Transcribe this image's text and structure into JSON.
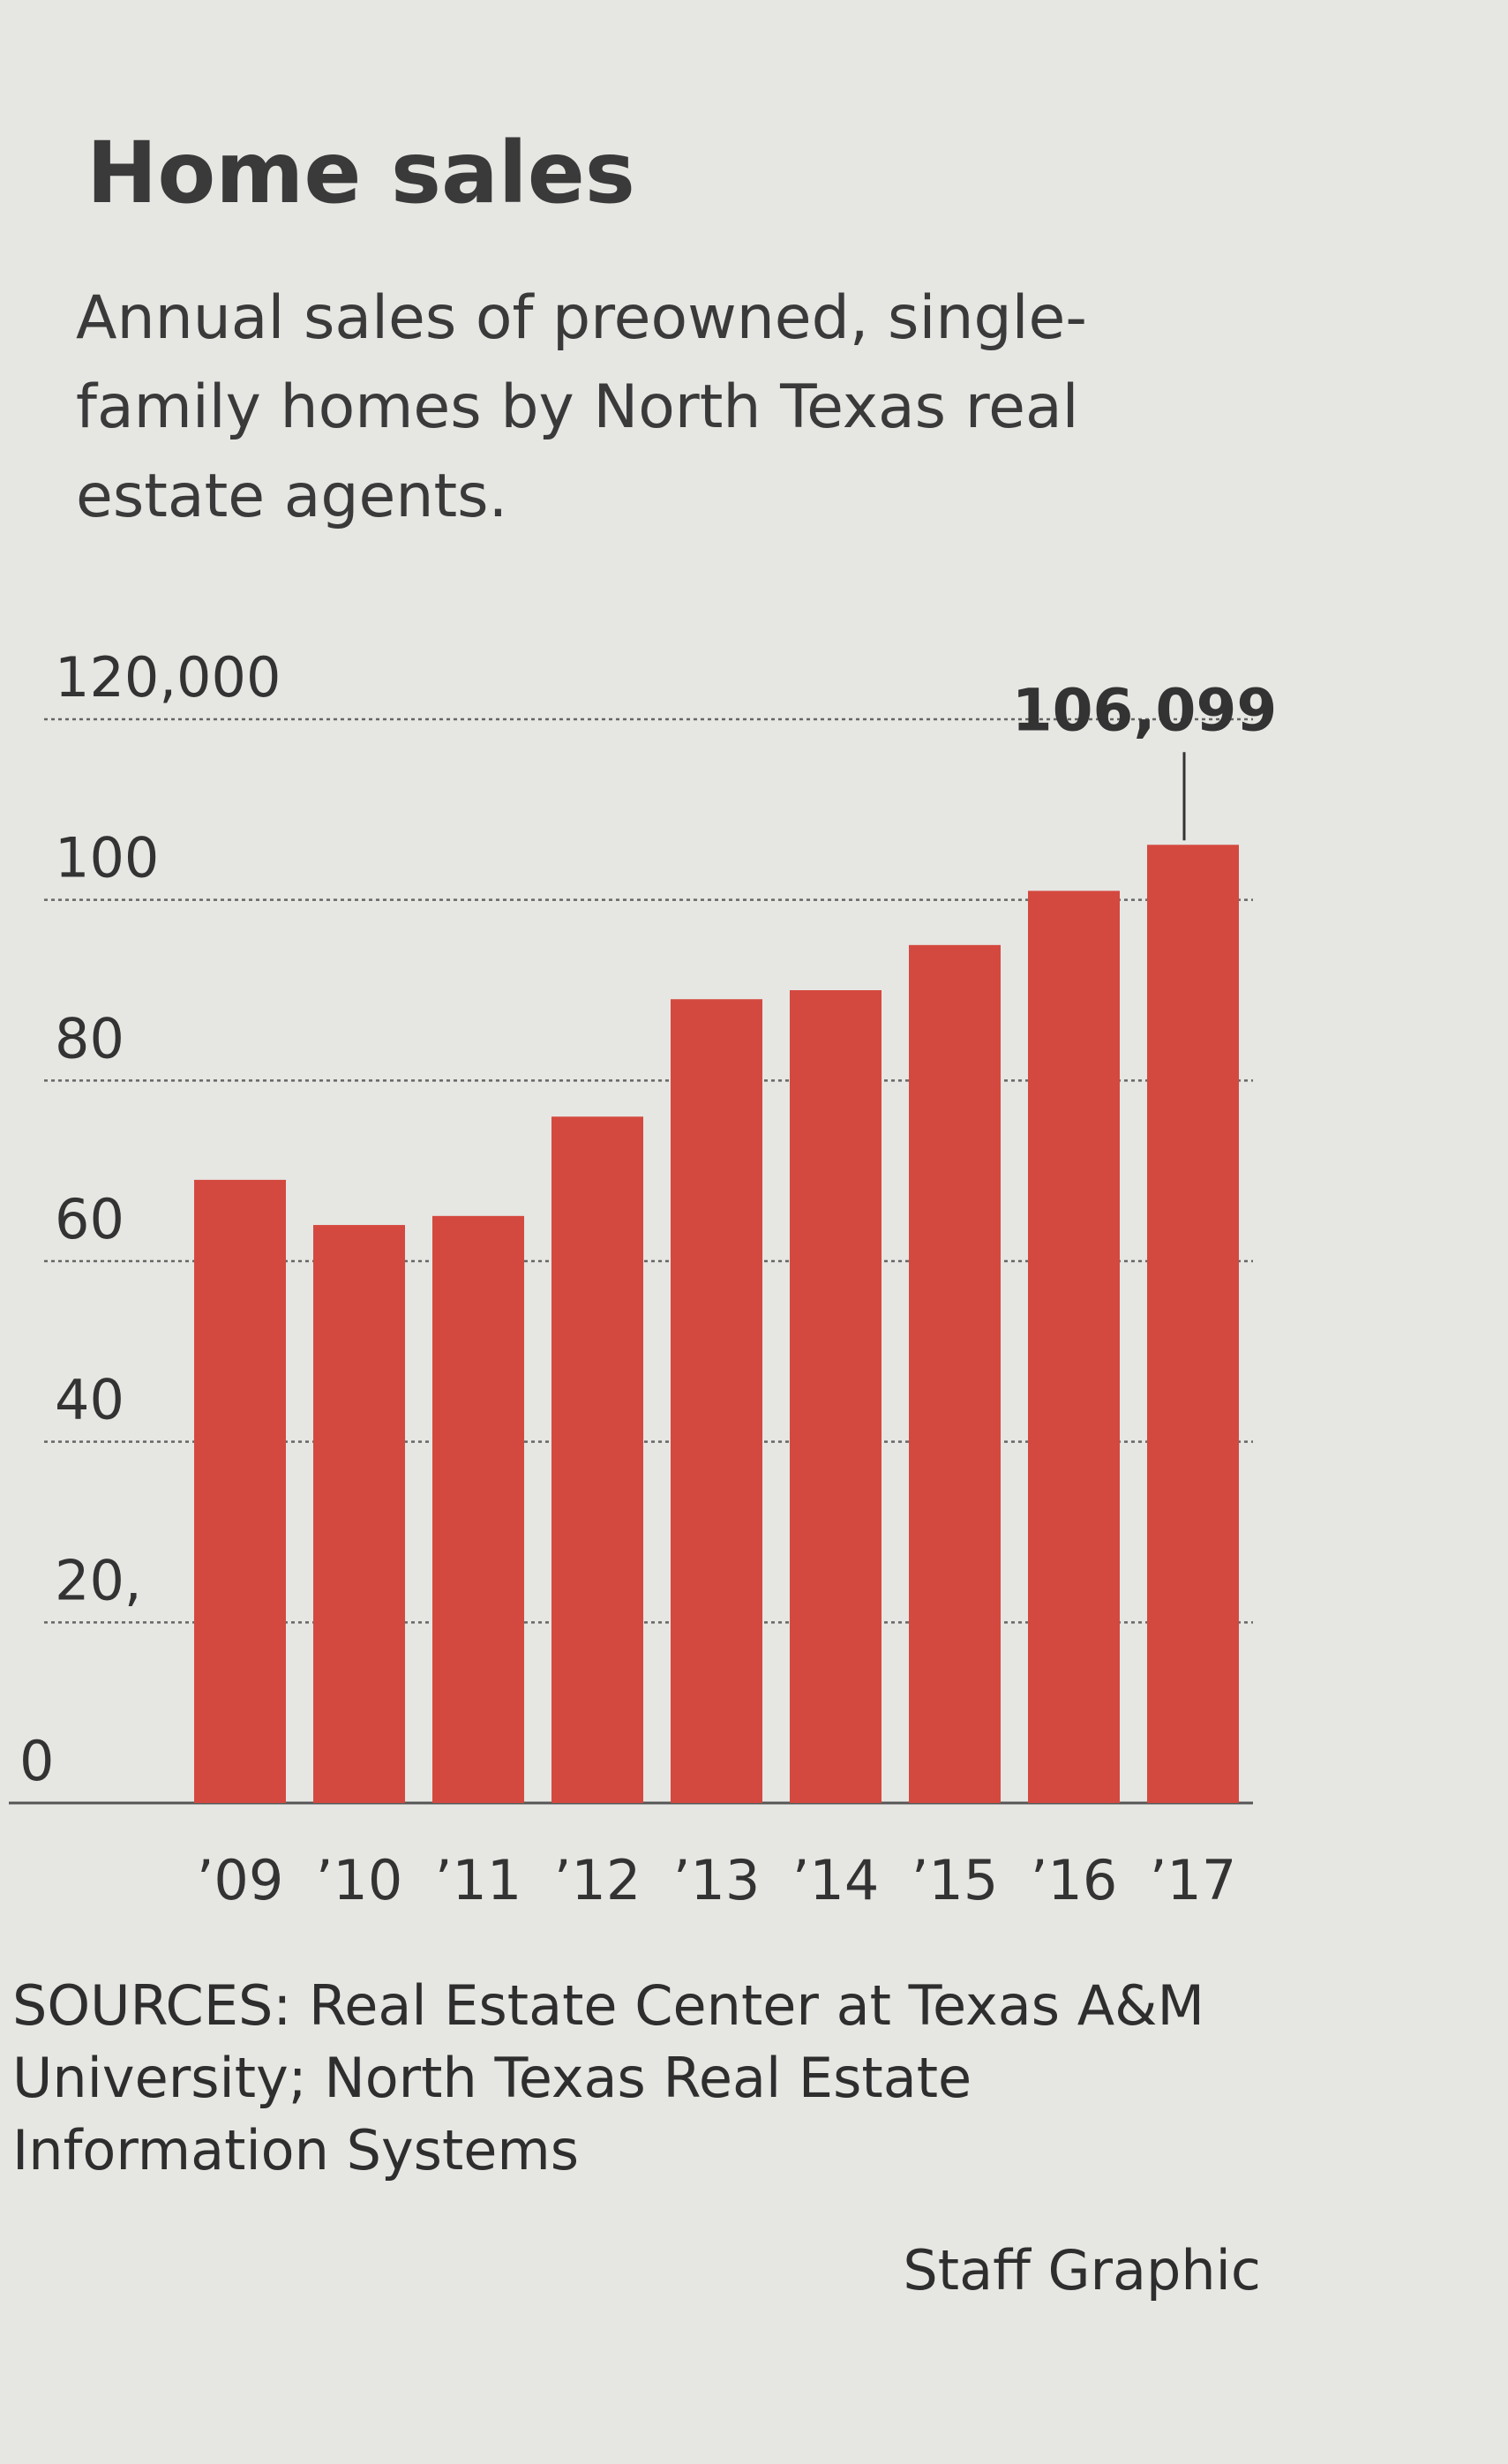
{
  "chart_data": {
    "type": "bar",
    "title": "Home sales",
    "subtitle": "Annual sales of preowned, single-family homes by North Texas real estate agents.",
    "categories": [
      "’09",
      "’10",
      "’11",
      "’12",
      "’13",
      "’14",
      "’15",
      "’16",
      "’17"
    ],
    "values": [
      69000,
      64000,
      65000,
      76000,
      89000,
      90000,
      95000,
      101000,
      106099
    ],
    "value_labels": [
      null,
      null,
      null,
      null,
      null,
      null,
      null,
      null,
      "106,099"
    ],
    "color": "#d4493f",
    "ylim": [
      0,
      120000
    ],
    "yticks": [
      0,
      {
        "value": 20000,
        "label": "20,"
      },
      {
        "value": 40000,
        "label": "40"
      },
      {
        "value": 60000,
        "label": "60"
      },
      {
        "value": 80000,
        "label": "80"
      },
      {
        "value": 100000,
        "label": "100"
      },
      {
        "value": 120000,
        "label": "120,000"
      }
    ],
    "grid": true,
    "source": "SOURCES: Real Estate Center at Texas A&M University; North Texas Real Estate Information Systems",
    "credit": "Staff Graphic"
  }
}
